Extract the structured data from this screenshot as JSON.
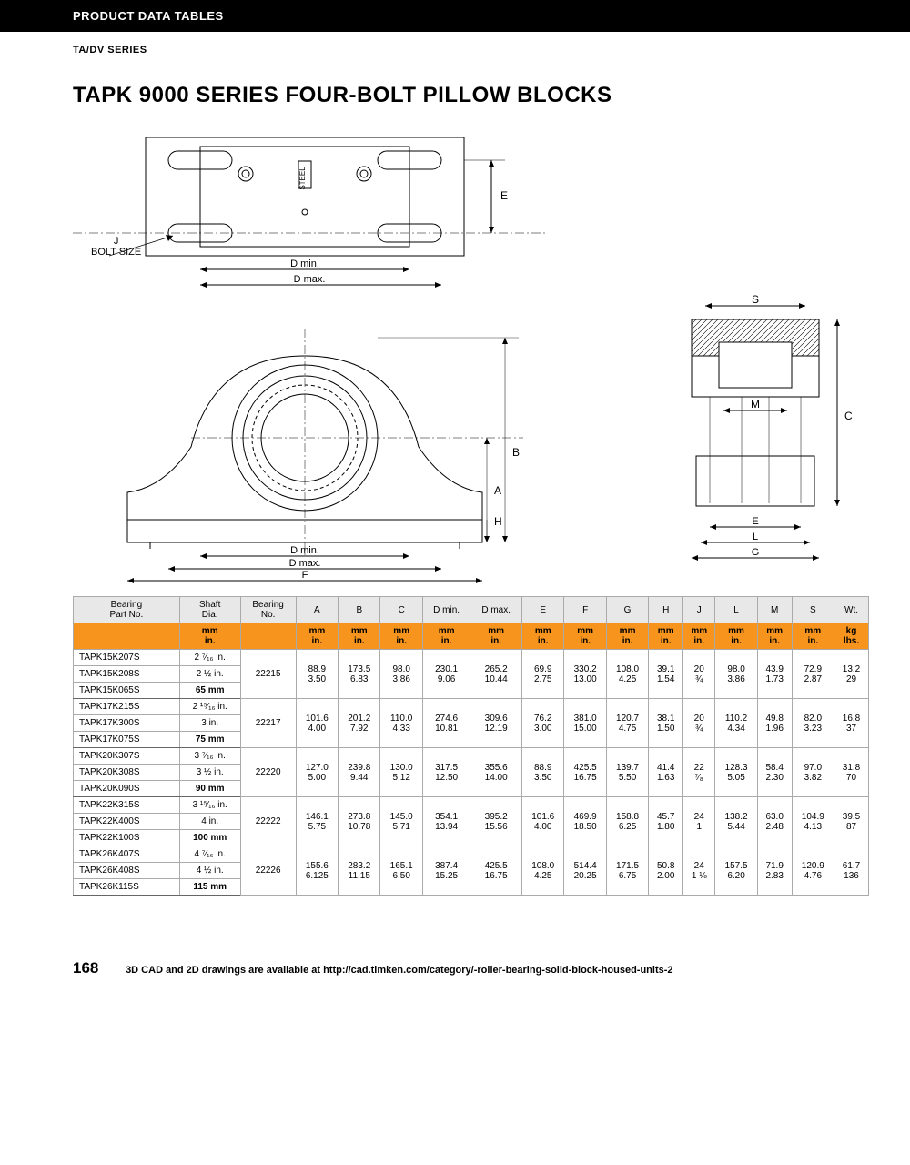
{
  "header": {
    "bar": "PRODUCT DATA TABLES",
    "series": "TA/DV SERIES"
  },
  "title": "TAPK 9000 SERIES FOUR-BOLT PILLOW BLOCKS",
  "diagram_labels": {
    "bolt": "J\nBOLT SIZE",
    "dmin": "D min.",
    "dmax": "D max.",
    "E": "E",
    "B": "B",
    "A": "A",
    "H": "H",
    "F": "F",
    "S": "S",
    "M": "M",
    "C": "C",
    "L": "L",
    "G": "G",
    "steel": "STEEL"
  },
  "table": {
    "columns": [
      "Bearing\nPart No.",
      "Shaft\nDia.",
      "Bearing\nNo.",
      "A",
      "B",
      "C",
      "D min.",
      "D max.",
      "E",
      "F",
      "G",
      "H",
      "J",
      "L",
      "M",
      "S",
      "Wt."
    ],
    "unit_row_mm": [
      "",
      "mm",
      "",
      "mm",
      "mm",
      "mm",
      "mm",
      "mm",
      "mm",
      "mm",
      "mm",
      "mm",
      "mm",
      "mm",
      "mm",
      "mm",
      "kg"
    ],
    "unit_row_in": [
      "",
      "in.",
      "",
      "in.",
      "in.",
      "in.",
      "in.",
      "in.",
      "in.",
      "in.",
      "in.",
      "in.",
      "in.",
      "in.",
      "in.",
      "in.",
      "lbs."
    ],
    "groups": [
      {
        "parts": [
          "TAPK15K207S",
          "TAPK15K208S",
          "TAPK15K065S"
        ],
        "shafts": [
          "2 ⁷⁄₁₆ in.",
          "2 ½ in.",
          "65 mm"
        ],
        "bearing": "22215",
        "mm": [
          "88.9",
          "173.5",
          "98.0",
          "230.1",
          "265.2",
          "69.9",
          "330.2",
          "108.0",
          "39.1",
          "20",
          "98.0",
          "43.9",
          "72.9",
          "13.2"
        ],
        "in": [
          "3.50",
          "6.83",
          "3.86",
          "9.06",
          "10.44",
          "2.75",
          "13.00",
          "4.25",
          "1.54",
          "¾",
          "3.86",
          "1.73",
          "2.87",
          "29"
        ]
      },
      {
        "parts": [
          "TAPK17K215S",
          "TAPK17K300S",
          "TAPK17K075S"
        ],
        "shafts": [
          "2 ¹⁵⁄₁₆ in.",
          "3 in.",
          "75 mm"
        ],
        "bearing": "22217",
        "mm": [
          "101.6",
          "201.2",
          "110.0",
          "274.6",
          "309.6",
          "76.2",
          "381.0",
          "120.7",
          "38.1",
          "20",
          "110.2",
          "49.8",
          "82.0",
          "16.8"
        ],
        "in": [
          "4.00",
          "7.92",
          "4.33",
          "10.81",
          "12.19",
          "3.00",
          "15.00",
          "4.75",
          "1.50",
          "¾",
          "4.34",
          "1.96",
          "3.23",
          "37"
        ]
      },
      {
        "parts": [
          "TAPK20K307S",
          "TAPK20K308S",
          "TAPK20K090S"
        ],
        "shafts": [
          "3 ⁷⁄₁₆ in.",
          "3 ½ in.",
          "90 mm"
        ],
        "bearing": "22220",
        "mm": [
          "127.0",
          "239.8",
          "130.0",
          "317.5",
          "355.6",
          "88.9",
          "425.5",
          "139.7",
          "41.4",
          "22",
          "128.3",
          "58.4",
          "97.0",
          "31.8"
        ],
        "in": [
          "5.00",
          "9.44",
          "5.12",
          "12.50",
          "14.00",
          "3.50",
          "16.75",
          "5.50",
          "1.63",
          "⁷⁄₈",
          "5.05",
          "2.30",
          "3.82",
          "70"
        ]
      },
      {
        "parts": [
          "TAPK22K315S",
          "TAPK22K400S",
          "TAPK22K100S"
        ],
        "shafts": [
          "3 ¹⁵⁄₁₆ in.",
          "4 in.",
          "100 mm"
        ],
        "bearing": "22222",
        "mm": [
          "146.1",
          "273.8",
          "145.0",
          "354.1",
          "395.2",
          "101.6",
          "469.9",
          "158.8",
          "45.7",
          "24",
          "138.2",
          "63.0",
          "104.9",
          "39.5"
        ],
        "in": [
          "5.75",
          "10.78",
          "5.71",
          "13.94",
          "15.56",
          "4.00",
          "18.50",
          "6.25",
          "1.80",
          "1",
          "5.44",
          "2.48",
          "4.13",
          "87"
        ]
      },
      {
        "parts": [
          "TAPK26K407S",
          "TAPK26K408S",
          "TAPK26K115S"
        ],
        "shafts": [
          "4 ⁷⁄₁₆ in.",
          "4 ½ in.",
          "115 mm"
        ],
        "bearing": "22226",
        "mm": [
          "155.6",
          "283.2",
          "165.1",
          "387.4",
          "425.5",
          "108.0",
          "514.4",
          "171.5",
          "50.8",
          "24",
          "157.5",
          "71.9",
          "120.9",
          "61.7"
        ],
        "in": [
          "6.125",
          "11.15",
          "6.50",
          "15.25",
          "16.75",
          "4.25",
          "20.25",
          "6.75",
          "2.00",
          "1 ⅛",
          "6.20",
          "2.83",
          "4.76",
          "136"
        ]
      }
    ]
  },
  "footer": {
    "page": "168",
    "note": "3D CAD and 2D drawings are available at http://cad.timken.com/category/-roller-bearing-solid-block-housed-units-2"
  }
}
